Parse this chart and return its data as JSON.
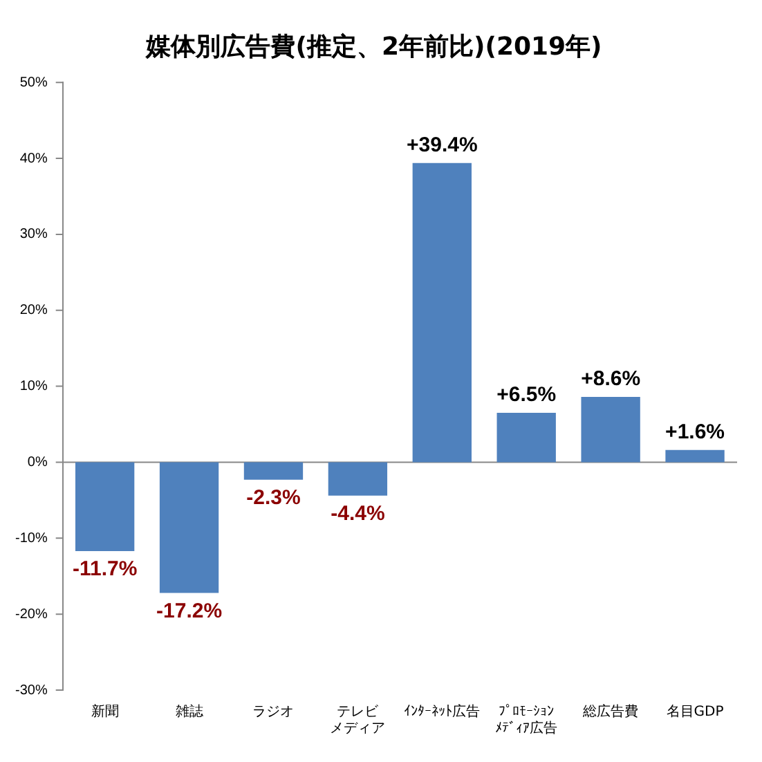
{
  "chart_data": {
    "type": "bar",
    "title": "媒体別広告費(推定、2年前比)(2019年)",
    "categories": [
      "新聞",
      "雑誌",
      "ラジオ",
      "テレビメディア",
      "ｲﾝﾀｰﾈｯﾄ広告",
      "ﾌﾟﾛﾓｰｼｮﾝﾒﾃﾞｨｱ広告",
      "総広告費",
      "名目GDP"
    ],
    "values": [
      -11.7,
      -17.2,
      -2.3,
      -4.4,
      39.4,
      6.5,
      8.6,
      1.6
    ],
    "value_labels": [
      "-11.7%",
      "-17.2%",
      "-2.3%",
      "-4.4%",
      "+39.4%",
      "+6.5%",
      "+8.6%",
      "+1.6%"
    ],
    "color": "#4f81bd",
    "ylim": [
      -30,
      50
    ],
    "yticks": [
      {
        "value": -30,
        "label": "-30%"
      },
      {
        "value": -20,
        "label": "-20%"
      },
      {
        "value": -10,
        "label": "-10%"
      },
      {
        "value": 0,
        "label": "0%"
      },
      {
        "value": 10,
        "label": "10%"
      },
      {
        "value": 20,
        "label": "20%"
      },
      {
        "value": 30,
        "label": "30%"
      },
      {
        "value": 40,
        "label": "40%"
      },
      {
        "value": 50,
        "label": "50%"
      }
    ],
    "legend": false
  }
}
